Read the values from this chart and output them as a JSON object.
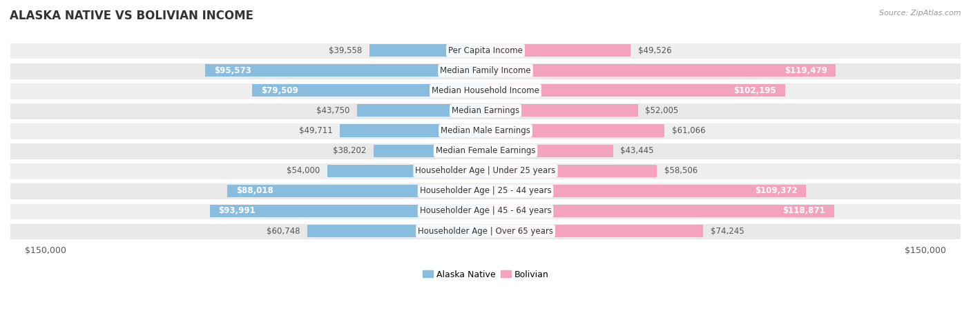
{
  "title": "ALASKA NATIVE VS BOLIVIAN INCOME",
  "source": "Source: ZipAtlas.com",
  "categories": [
    "Per Capita Income",
    "Median Family Income",
    "Median Household Income",
    "Median Earnings",
    "Median Male Earnings",
    "Median Female Earnings",
    "Householder Age | Under 25 years",
    "Householder Age | 25 - 44 years",
    "Householder Age | 45 - 64 years",
    "Householder Age | Over 65 years"
  ],
  "alaska_native": [
    39558,
    95573,
    79509,
    43750,
    49711,
    38202,
    54000,
    88018,
    93991,
    60748
  ],
  "bolivian": [
    49526,
    119479,
    102195,
    52005,
    61066,
    43445,
    58506,
    109372,
    118871,
    74245
  ],
  "alaska_color": "#88bde0",
  "bolivian_color": "#f4a3bc",
  "max_value": 150000,
  "bg_row_even": "#eeeeee",
  "bg_row_odd": "#e8e8e8",
  "bg_color": "#ffffff",
  "label_fontsize": 8.5,
  "title_fontsize": 12,
  "source_fontsize": 8,
  "value_label_threshold": 75000,
  "legend_fontsize": 9
}
